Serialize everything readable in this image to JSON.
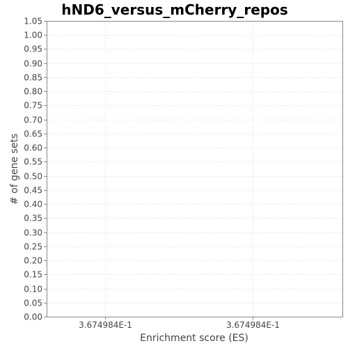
{
  "chart_data": {
    "type": "bar",
    "title": "hND6_versus_mCherry_repos",
    "xlabel": "Enrichment score (ES)",
    "ylabel": "# of gene sets",
    "ylim": [
      0,
      1.05
    ],
    "y_ticks": [
      "0.00",
      "0.05",
      "0.10",
      "0.15",
      "0.20",
      "0.25",
      "0.30",
      "0.35",
      "0.40",
      "0.45",
      "0.50",
      "0.55",
      "0.60",
      "0.65",
      "0.70",
      "0.75",
      "0.80",
      "0.85",
      "0.90",
      "0.95",
      "1.00",
      "1.05"
    ],
    "x_ticks": [
      "3.674984E-1",
      "3.674984E-1"
    ],
    "categories": [],
    "values": [],
    "grid": true,
    "colors": {
      "plot_border": "#888888",
      "grid": "#e8e8e8",
      "tick_text": "#444444"
    }
  }
}
